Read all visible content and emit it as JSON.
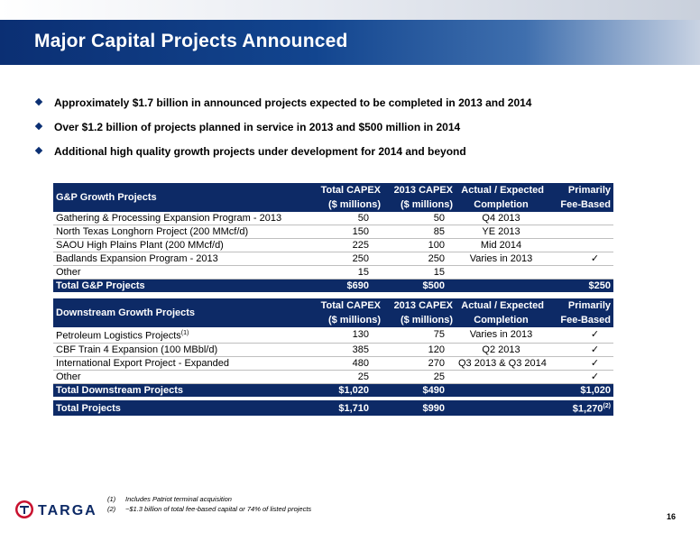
{
  "title": "Major Capital Projects Announced",
  "bullets": [
    "Approximately $1.7 billion in announced projects expected to be completed in 2013 and 2014",
    "Over $1.2 billion of projects planned in service in 2013 and $500 million in 2014",
    "Additional high quality growth projects under development for 2014 and beyond"
  ],
  "gp": {
    "name": "G&P Growth Projects",
    "col1a": "Total CAPEX",
    "col1b": "($ millions)",
    "col2a": "2013 CAPEX",
    "col2b": "($ millions)",
    "col3a": "Actual / Expected",
    "col3b": "Completion",
    "col4a": "Primarily",
    "col4b": "Fee-Based",
    "rows": [
      {
        "name": "Gathering & Processing Expansion Program - 2013",
        "total": "50",
        "c2013": "50",
        "completion": "Q4 2013",
        "fee": ""
      },
      {
        "name": "North Texas Longhorn Project (200 MMcf/d)",
        "total": "150",
        "c2013": "85",
        "completion": "YE 2013",
        "fee": ""
      },
      {
        "name": "SAOU High Plains Plant (200 MMcf/d)",
        "total": "225",
        "c2013": "100",
        "completion": "Mid 2014",
        "fee": ""
      },
      {
        "name": "Badlands Expansion Program - 2013",
        "total": "250",
        "c2013": "250",
        "completion": "Varies in 2013",
        "fee": "✓"
      },
      {
        "name": "Other",
        "total": "15",
        "c2013": "15",
        "completion": "",
        "fee": ""
      }
    ],
    "total": {
      "name": "Total G&P Projects",
      "total": "$690",
      "c2013": "$500",
      "fee": "$250"
    }
  },
  "ds": {
    "name": "Downstream Growth Projects",
    "col1a": "Total CAPEX",
    "col1b": "($ millions)",
    "col2a": "2013 CAPEX",
    "col2b": "($ millions)",
    "col3a": "Actual / Expected",
    "col3b": "Completion",
    "col4a": "Primarily",
    "col4b": "Fee-Based",
    "rows": [
      {
        "name": "Petroleum Logistics Projects",
        "sup": "(1)",
        "total": "130",
        "c2013": "75",
        "completion": "Varies in 2013",
        "fee": "✓"
      },
      {
        "name": "CBF Train 4 Expansion (100 MBbl/d)",
        "total": "385",
        "c2013": "120",
        "completion": "Q2 2013",
        "fee": "✓"
      },
      {
        "name": "International Export Project - Expanded",
        "total": "480",
        "c2013": "270",
        "completion": "Q3 2013 & Q3 2014",
        "fee": "✓"
      },
      {
        "name": "Other",
        "total": "25",
        "c2013": "25",
        "completion": "",
        "fee": "✓"
      }
    ],
    "total": {
      "name": "Total Downstream Projects",
      "total": "$1,020",
      "c2013": "$490",
      "fee": "$1,020"
    }
  },
  "grand": {
    "name": "Total Projects",
    "total": "$1,710",
    "c2013": "$990",
    "fee": "$1,270",
    "sup": "(2)"
  },
  "footnotes": [
    {
      "num": "(1)",
      "text": "Includes Patriot terminal acquisition"
    },
    {
      "num": "(2)",
      "text": "~$1.3 billion of total fee-based capital or 74% of listed projects"
    }
  ],
  "logo_text": "TARGA",
  "page_number": "16",
  "colors": {
    "navy": "#0d2a66",
    "title_blue": "#12458f",
    "logo_red": "#c8102e"
  }
}
